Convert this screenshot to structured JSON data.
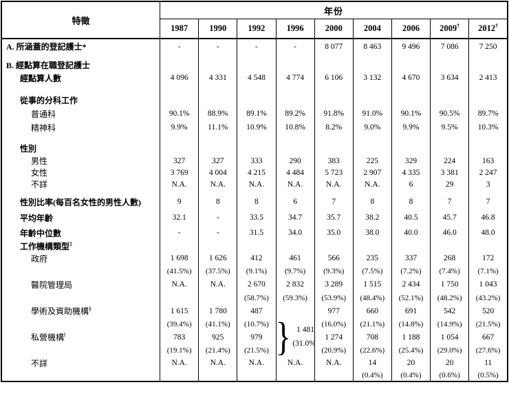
{
  "header": {
    "feature_label": "特徵",
    "year_label": "年份",
    "years": [
      {
        "label": "1987",
        "sup": ""
      },
      {
        "label": "1990",
        "sup": ""
      },
      {
        "label": "1992",
        "sup": ""
      },
      {
        "label": "1996",
        "sup": ""
      },
      {
        "label": "2000",
        "sup": ""
      },
      {
        "label": "2004",
        "sup": ""
      },
      {
        "label": "2006",
        "sup": ""
      },
      {
        "label": "2009",
        "sup": "†"
      },
      {
        "label": "2012",
        "sup": "†"
      }
    ]
  },
  "table": {
    "rows": [
      {
        "cls": "seca rh22",
        "label": "A. 所涵蓋的登記護士*",
        "sup": "",
        "values": [
          "-",
          "-",
          "-",
          "-",
          "8 077",
          "8 463",
          "9 496",
          "7 086",
          "7 250"
        ]
      },
      {
        "cls": "rh8",
        "label": "",
        "sup": "",
        "values": [
          "",
          "",
          "",
          "",
          "",
          "",
          "",
          "",
          ""
        ]
      },
      {
        "cls": "seca rh16",
        "label": "B. 經點算在職登記護士",
        "sup": "",
        "values": [
          "",
          "",
          "",
          "",
          "",
          "",
          "",
          "",
          ""
        ]
      },
      {
        "cls": "h1 rh20",
        "label": "經點算人數",
        "sup": "",
        "values": [
          "4 096",
          "4 331",
          "4 548",
          "4 774",
          "6 106",
          "3 132",
          "4 670",
          "3 634",
          "2 413"
        ]
      },
      {
        "cls": "rh12",
        "label": "",
        "sup": "",
        "values": [
          "",
          "",
          "",
          "",
          "",
          "",
          "",
          "",
          ""
        ]
      },
      {
        "cls": "h1 rh20",
        "label": "從事的分科工作",
        "sup": "",
        "values": [
          "",
          "",
          "",
          "",
          "",
          "",
          "",
          "",
          ""
        ]
      },
      {
        "cls": "item rh20",
        "label": "普通科",
        "sup": "",
        "values": [
          "90.1%",
          "88.9%",
          "89.1%",
          "89.2%",
          "91.8%",
          "91.0%",
          "90.1%",
          "90.5%",
          "89.7%"
        ]
      },
      {
        "cls": "item rh20",
        "label": "精神科",
        "sup": "",
        "values": [
          "9.9%",
          "11.1%",
          "10.9%",
          "10.8%",
          "8.2%",
          "9.0%",
          "9.9%",
          "9.5%",
          "10.3%"
        ]
      },
      {
        "cls": "rh10",
        "label": "",
        "sup": "",
        "values": [
          "",
          "",
          "",
          "",
          "",
          "",
          "",
          "",
          ""
        ]
      },
      {
        "cls": "h1 rh20",
        "label": "性別",
        "sup": "",
        "values": [
          "",
          "",
          "",
          "",
          "",
          "",
          "",
          "",
          ""
        ]
      },
      {
        "cls": "item rh17",
        "label": "男性",
        "sup": "",
        "values": [
          "327",
          "327",
          "333",
          "290",
          "383",
          "225",
          "329",
          "224",
          "163"
        ]
      },
      {
        "cls": "item rh17",
        "label": "女性",
        "sup": "",
        "values": [
          "3 769",
          "4 004",
          "4 215",
          "4 484",
          "5 723",
          "2 907",
          "4 335",
          "3 381",
          "2 247"
        ]
      },
      {
        "cls": "item rh17",
        "label": "不詳",
        "sup": "",
        "values": [
          "N.A.",
          "N.A.",
          "N.A.",
          "N.A.",
          "N.A.",
          "N.A.",
          "6",
          "29",
          "3"
        ]
      },
      {
        "cls": "rh6",
        "label": "",
        "sup": "",
        "values": [
          "",
          "",
          "",
          "",
          "",
          "",
          "",
          "",
          ""
        ]
      },
      {
        "cls": "h1 rh22",
        "label": "性別比率(每百名女性的男性人數)",
        "sup": "",
        "values": [
          "9",
          "8",
          "8",
          "6",
          "7",
          "8",
          "8",
          "7",
          "7"
        ]
      },
      {
        "cls": "h1 rh24",
        "label": "平均年齡",
        "sup": "",
        "values": [
          "32.1",
          "-",
          "33.5",
          "34.7",
          "35.7",
          "38.2",
          "40.5",
          "45.7",
          "46.8"
        ]
      },
      {
        "cls": "h1 rh20",
        "label": "年齡中位數",
        "sup": "",
        "values": [
          "-",
          "-",
          "31.5",
          "34.0",
          "35.0",
          "38.0",
          "40.0",
          "46.0",
          "48.0"
        ]
      },
      {
        "cls": "h1 rh18",
        "label": "工作機構類型",
        "sup": "‡",
        "values": [
          "",
          "",
          "",
          "",
          "",
          "",
          "",
          "",
          ""
        ]
      },
      {
        "cls": "item rh18",
        "label": "政府",
        "sup": "",
        "values": [
          "1 698",
          "1 626",
          "412",
          "461",
          "566",
          "235",
          "337",
          "268",
          "172"
        ]
      },
      {
        "cls": "pct rh19",
        "label": "",
        "sup": "",
        "values": [
          "(41.5%)",
          "(37.5%)",
          "(9.1%)",
          "(9.7%)",
          "(9.3%)",
          "(7.5%)",
          "(7.2%)",
          "(7.4%)",
          "(7.1%)"
        ]
      },
      {
        "cls": "item rh20",
        "label": "醫院管理局",
        "sup": "",
        "values": [
          "N.A.",
          "N.A.",
          "2 670",
          "2 832",
          "3 289",
          "1 515",
          "2 434",
          "1 750",
          "1 043"
        ]
      },
      {
        "cls": "pct rh19",
        "label": "",
        "sup": "",
        "values": [
          "",
          "",
          "(58.7%)",
          "(59.3%)",
          "(53.9%)",
          "(48.4%)",
          "(52.1%)",
          "(48.2%)",
          "(43.2%)"
        ]
      },
      {
        "cls": "item rh19",
        "label": "學術及資助機構",
        "sup": "§",
        "values": [
          "1 615",
          "1 780",
          "487",
          {
            "rowspan": 4,
            "brace": "}",
            "lines": [
              "1 481",
              "(31.0%)"
            ]
          },
          "977",
          "660",
          "691",
          "542",
          "520"
        ]
      },
      {
        "cls": "pct rh19",
        "label": "",
        "sup": "",
        "values": [
          "(39.4%)",
          "(41.1%)",
          "(10.7%)",
          null,
          "(16.0%)",
          "(21.1%)",
          "(14.8%)",
          "(14.9%)",
          "(21.5%)"
        ]
      },
      {
        "cls": "item rh19",
        "label": "私營機構",
        "sup": "‖",
        "values": [
          "783",
          "925",
          "979",
          null,
          "1 274",
          "708",
          "1 188",
          "1 054",
          "667"
        ]
      },
      {
        "cls": "pct rh19",
        "label": "",
        "sup": "",
        "values": [
          "(19.1%)",
          "(21.4%)",
          "(21.5%)",
          null,
          "(20.9%)",
          "(22.6%)",
          "(25.4%)",
          "(29.0%)",
          "(27.6%)"
        ]
      },
      {
        "cls": "item rh18",
        "label": "不詳",
        "sup": "",
        "values": [
          "N.A.",
          "N.A.",
          "N.A.",
          "N.A.",
          "N.A.",
          "14",
          "20",
          "20",
          "11"
        ]
      },
      {
        "cls": "pct rh18",
        "label": "",
        "sup": "",
        "values": [
          "",
          "",
          "",
          "",
          "",
          "(0.4%)",
          "(0.4%)",
          "(0.6%)",
          "(0.5%)"
        ]
      }
    ]
  }
}
